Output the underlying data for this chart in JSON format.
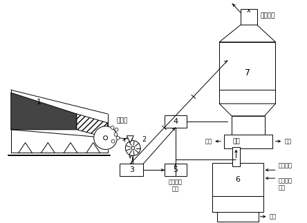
{
  "bg_color": "#ffffff",
  "line_color": "#000000",
  "text_color": "#000000",
  "fig_width": 4.44,
  "fig_height": 3.23,
  "dpi": 100,
  "labels": {
    "label_1": "1",
    "label_2": "2",
    "label_3": "3",
    "label_4": "4",
    "label_5": "5",
    "label_6": "6",
    "label_7": "7",
    "sinter_ore": "烧结矿",
    "furnace_gas": "炉顶煿气",
    "slag_iron_left": "渣铁",
    "slag_iron_right": "渣铁",
    "slag_iron_6": "渣铁",
    "oxygen": "氧气",
    "high_temp_gas": "高温煿气",
    "sinter_return_coal": "烧结返矿\n煤粉",
    "feed_label": "烧结返矿\n煤粉"
  }
}
